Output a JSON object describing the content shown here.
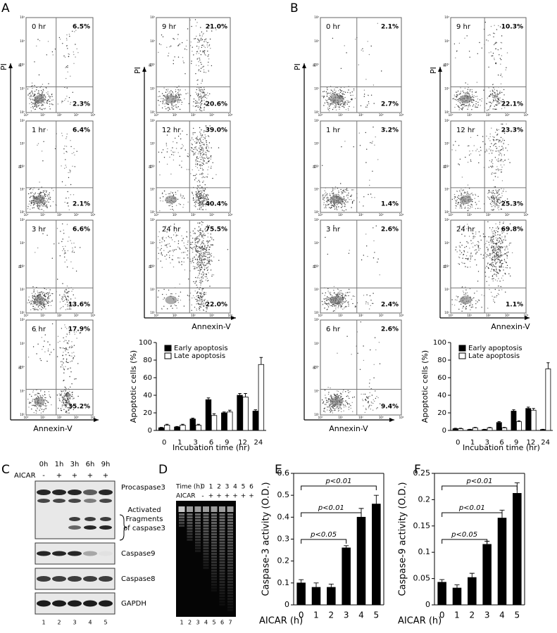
{
  "panel_labels": [
    "A",
    "B",
    "C",
    "D",
    "E",
    "F"
  ],
  "flow": {
    "y_label": "PI",
    "x_label": "Annexin-V",
    "ticks": [
      "10⁰",
      "10¹",
      "10²",
      "10³",
      "10⁴"
    ],
    "A": [
      {
        "time": "0 hr",
        "upper_right": "6.5%",
        "lower_right": "2.3%"
      },
      {
        "time": "1 hr",
        "upper_right": "6.4%",
        "lower_right": "2.1%"
      },
      {
        "time": "3 hr",
        "upper_right": "6.6%",
        "lower_right": "13.6%"
      },
      {
        "time": "6 hr",
        "upper_right": "17.9%",
        "lower_right": "35.2%"
      },
      {
        "time": "9 hr",
        "upper_right": "21.0%",
        "lower_right": "20.6%"
      },
      {
        "time": "12 hr",
        "upper_right": "39.0%",
        "lower_right": "40.4%"
      },
      {
        "time": "24 hr",
        "upper_right": "75.5%",
        "lower_right": "22.0%"
      }
    ],
    "B": [
      {
        "time": "0 hr",
        "upper_right": "2.1%",
        "lower_right": "2.7%"
      },
      {
        "time": "1 hr",
        "upper_right": "3.2%",
        "lower_right": "1.4%"
      },
      {
        "time": "3 hr",
        "upper_right": "2.6%",
        "lower_right": "2.4%"
      },
      {
        "time": "6 hr",
        "upper_right": "2.6%",
        "lower_right": "9.4%"
      },
      {
        "time": "9 hr",
        "upper_right": "10.3%",
        "lower_right": "22.1%"
      },
      {
        "time": "12 hr",
        "upper_right": "23.3%",
        "lower_right": "25.3%"
      },
      {
        "time": "24 hr",
        "upper_right": "69.8%",
        "lower_right": "1.1%"
      }
    ]
  },
  "western": {
    "times": [
      "0h",
      "1h",
      "3h",
      "6h",
      "9h"
    ],
    "treatment": "AICAR",
    "signs": [
      "-",
      "+",
      "+",
      "+",
      "+"
    ],
    "labels": [
      "Procaspase3",
      "Activated Fragments of caspase3",
      "Caspase9",
      "Caspase8",
      "GAPDH"
    ],
    "lanes": [
      "1",
      "2",
      "3",
      "4",
      "5"
    ]
  },
  "gel": {
    "time_label": "Time (h)",
    "times": [
      "0",
      "1",
      "2",
      "3",
      "4",
      "5",
      "6"
    ],
    "treatment": "AICAR",
    "signs": [
      "-",
      "+",
      "+",
      "+",
      "+",
      "+",
      "+"
    ],
    "lanes": [
      "1",
      "2",
      "3",
      "4",
      "5",
      "6",
      "7"
    ]
  },
  "chart_data": [
    {
      "type": "bar",
      "y_label": "Apoptotic cells (%)",
      "x_label": "Incubation time (hr)",
      "categories": [
        "0",
        "1",
        "3",
        "6",
        "9",
        "12",
        "24"
      ],
      "series": [
        {
          "name": "Early apoptosis",
          "color": "#000000",
          "values": [
            3,
            4,
            13,
            35,
            20,
            40,
            22
          ],
          "errors": [
            0.5,
            0.5,
            1,
            2,
            1,
            2,
            1.5
          ]
        },
        {
          "name": "Late apoptosis",
          "color": "#ffffff",
          "values": [
            6,
            6,
            6,
            17,
            21,
            38,
            75
          ],
          "errors": [
            1,
            1,
            1,
            2,
            2,
            4,
            8
          ]
        }
      ],
      "ylim": [
        0,
        100
      ],
      "yticks": [
        0,
        20,
        40,
        60,
        80,
        100
      ]
    },
    {
      "type": "bar",
      "y_label": "Apoptotic cells (%)",
      "x_label": "Incubation time (hr)",
      "categories": [
        "0",
        "1",
        "3",
        "6",
        "9",
        "12",
        "24"
      ],
      "series": [
        {
          "name": "Early apoptosis",
          "color": "#000000",
          "values": [
            2,
            1,
            1,
            9,
            22,
            25,
            1
          ],
          "errors": [
            0.5,
            0.3,
            0.3,
            1,
            1.5,
            1.5,
            0.3
          ]
        },
        {
          "name": "Late apoptosis",
          "color": "#ffffff",
          "values": [
            2,
            3,
            3,
            3,
            10,
            23,
            70
          ],
          "errors": [
            0.5,
            0.5,
            0.5,
            0.5,
            1,
            2,
            7
          ]
        }
      ],
      "ylim": [
        0,
        100
      ],
      "yticks": [
        0,
        20,
        40,
        60,
        80,
        100
      ]
    },
    {
      "type": "bar",
      "y_label": "Caspase-3 activity (O.D.)",
      "x_label": "AICAR (h)",
      "categories": [
        "0",
        "1",
        "2",
        "3",
        "4",
        "5"
      ],
      "color": "#000000",
      "values": [
        0.1,
        0.08,
        0.08,
        0.26,
        0.4,
        0.46
      ],
      "errors": [
        0.015,
        0.02,
        0.015,
        0.01,
        0.04,
        0.04
      ],
      "annotations": [
        "p<0.05",
        "p<0.01",
        "p<0.01"
      ],
      "ylim": [
        0,
        0.6
      ],
      "yticks": [
        0,
        0.1,
        0.2,
        0.3,
        0.4,
        0.5,
        0.6
      ]
    },
    {
      "type": "bar",
      "y_label": "Caspase-9 activity (O.D.)",
      "x_label": "AICAR (h)",
      "categories": [
        "0",
        "1",
        "2",
        "3",
        "4",
        "5"
      ],
      "color": "#000000",
      "values": [
        0.043,
        0.032,
        0.052,
        0.115,
        0.165,
        0.212
      ],
      "errors": [
        0.005,
        0.006,
        0.008,
        0.006,
        0.015,
        0.02
      ],
      "annotations": [
        "p<0.05",
        "p<0.01",
        "p<0.01"
      ],
      "ylim": [
        0,
        0.25
      ],
      "yticks": [
        0,
        0.05,
        0.1,
        0.15,
        0.2,
        0.25
      ]
    }
  ]
}
